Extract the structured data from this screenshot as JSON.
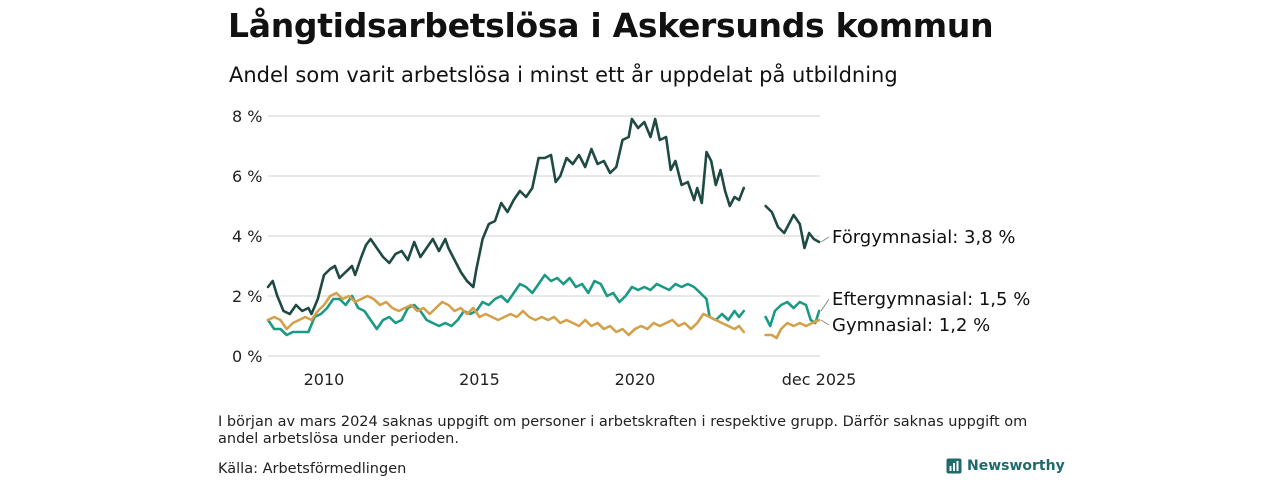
{
  "header": {
    "title": "Långtidsarbetslösa i Askersunds kommun",
    "subtitle": "Andel som varit arbetslösa i minst ett år uppdelat på utbildning"
  },
  "footer": {
    "note": "I början av mars 2024 saknas uppgift om personer i arbetskraften i respektive grupp. Därför saknas uppgift om andel arbetslösa under perioden.",
    "source": "Källa: Arbetsförmedlingen",
    "brand": "Newsworthy"
  },
  "colors": {
    "forgymnasial": "#1e4a42",
    "eftergymnasial": "#1a9a85",
    "gymnasial": "#d4a04a",
    "grid": "#d9d9d9",
    "brand": "#1d6b6b"
  },
  "chart_data": {
    "type": "line",
    "title": "Långtidsarbetslösa i Askersunds kommun",
    "xlabel": "",
    "ylabel": "",
    "xlim": [
      2008.2,
      2025.95
    ],
    "ylim": [
      0,
      8
    ],
    "y_ticks": [
      0,
      2,
      4,
      6,
      8
    ],
    "y_tick_labels": [
      "0 %",
      "2 %",
      "4 %",
      "6 %",
      "8 %"
    ],
    "x_ticks": [
      2010,
      2015,
      2020,
      2025.92
    ],
    "x_tick_labels": [
      "2010",
      "2015",
      "2020",
      "dec 2025"
    ],
    "gap": [
      2023.5,
      2024.2
    ],
    "series": [
      {
        "name": "Förgymnasial",
        "end_label": "Förgymnasial: 3,8 %",
        "color_key": "forgymnasial",
        "points": [
          [
            2008.2,
            2.3
          ],
          [
            2008.35,
            2.5
          ],
          [
            2008.5,
            2.0
          ],
          [
            2008.7,
            1.5
          ],
          [
            2008.9,
            1.4
          ],
          [
            2009.1,
            1.7
          ],
          [
            2009.3,
            1.5
          ],
          [
            2009.5,
            1.6
          ],
          [
            2009.6,
            1.4
          ],
          [
            2009.8,
            1.9
          ],
          [
            2010.0,
            2.7
          ],
          [
            2010.2,
            2.9
          ],
          [
            2010.35,
            3.0
          ],
          [
            2010.5,
            2.6
          ],
          [
            2010.7,
            2.8
          ],
          [
            2010.9,
            3.0
          ],
          [
            2011.0,
            2.7
          ],
          [
            2011.2,
            3.3
          ],
          [
            2011.35,
            3.7
          ],
          [
            2011.5,
            3.9
          ],
          [
            2011.7,
            3.6
          ],
          [
            2011.9,
            3.3
          ],
          [
            2012.1,
            3.1
          ],
          [
            2012.3,
            3.4
          ],
          [
            2012.5,
            3.5
          ],
          [
            2012.7,
            3.2
          ],
          [
            2012.9,
            3.8
          ],
          [
            2013.1,
            3.3
          ],
          [
            2013.3,
            3.6
          ],
          [
            2013.5,
            3.9
          ],
          [
            2013.7,
            3.5
          ],
          [
            2013.9,
            3.9
          ],
          [
            2014.0,
            3.6
          ],
          [
            2014.2,
            3.2
          ],
          [
            2014.4,
            2.8
          ],
          [
            2014.6,
            2.5
          ],
          [
            2014.8,
            2.3
          ],
          [
            2014.9,
            2.9
          ],
          [
            2015.1,
            3.9
          ],
          [
            2015.3,
            4.4
          ],
          [
            2015.5,
            4.5
          ],
          [
            2015.7,
            5.1
          ],
          [
            2015.9,
            4.8
          ],
          [
            2016.1,
            5.2
          ],
          [
            2016.3,
            5.5
          ],
          [
            2016.5,
            5.3
          ],
          [
            2016.7,
            5.6
          ],
          [
            2016.9,
            6.6
          ],
          [
            2017.1,
            6.6
          ],
          [
            2017.3,
            6.7
          ],
          [
            2017.45,
            5.8
          ],
          [
            2017.6,
            6.0
          ],
          [
            2017.8,
            6.6
          ],
          [
            2018.0,
            6.4
          ],
          [
            2018.2,
            6.7
          ],
          [
            2018.4,
            6.3
          ],
          [
            2018.6,
            6.9
          ],
          [
            2018.8,
            6.4
          ],
          [
            2019.0,
            6.5
          ],
          [
            2019.2,
            6.1
          ],
          [
            2019.4,
            6.3
          ],
          [
            2019.6,
            7.2
          ],
          [
            2019.8,
            7.3
          ],
          [
            2019.9,
            7.9
          ],
          [
            2020.1,
            7.6
          ],
          [
            2020.3,
            7.8
          ],
          [
            2020.5,
            7.3
          ],
          [
            2020.65,
            7.9
          ],
          [
            2020.8,
            7.2
          ],
          [
            2021.0,
            7.3
          ],
          [
            2021.15,
            6.2
          ],
          [
            2021.3,
            6.5
          ],
          [
            2021.5,
            5.7
          ],
          [
            2021.7,
            5.8
          ],
          [
            2021.9,
            5.2
          ],
          [
            2022.0,
            5.6
          ],
          [
            2022.15,
            5.1
          ],
          [
            2022.3,
            6.8
          ],
          [
            2022.45,
            6.5
          ],
          [
            2022.6,
            5.7
          ],
          [
            2022.75,
            6.2
          ],
          [
            2022.9,
            5.5
          ],
          [
            2023.05,
            5.0
          ],
          [
            2023.2,
            5.3
          ],
          [
            2023.35,
            5.2
          ],
          [
            2023.5,
            5.6
          ],
          null,
          [
            2024.2,
            5.0
          ],
          [
            2024.4,
            4.8
          ],
          [
            2024.6,
            4.3
          ],
          [
            2024.8,
            4.1
          ],
          [
            2024.95,
            4.4
          ],
          [
            2025.1,
            4.7
          ],
          [
            2025.3,
            4.4
          ],
          [
            2025.45,
            3.6
          ],
          [
            2025.6,
            4.1
          ],
          [
            2025.75,
            3.9
          ],
          [
            2025.92,
            3.8
          ]
        ]
      },
      {
        "name": "Eftergymnasial",
        "end_label": "Eftergymnasial: 1,5 %",
        "color_key": "eftergymnasial",
        "points": [
          [
            2008.2,
            1.2
          ],
          [
            2008.4,
            0.9
          ],
          [
            2008.6,
            0.9
          ],
          [
            2008.8,
            0.7
          ],
          [
            2009.0,
            0.8
          ],
          [
            2009.3,
            0.8
          ],
          [
            2009.5,
            0.8
          ],
          [
            2009.7,
            1.3
          ],
          [
            2009.9,
            1.4
          ],
          [
            2010.1,
            1.6
          ],
          [
            2010.3,
            1.9
          ],
          [
            2010.5,
            1.9
          ],
          [
            2010.7,
            1.7
          ],
          [
            2010.9,
            2.0
          ],
          [
            2011.1,
            1.6
          ],
          [
            2011.3,
            1.5
          ],
          [
            2011.5,
            1.2
          ],
          [
            2011.7,
            0.9
          ],
          [
            2011.9,
            1.2
          ],
          [
            2012.1,
            1.3
          ],
          [
            2012.3,
            1.1
          ],
          [
            2012.5,
            1.2
          ],
          [
            2012.7,
            1.6
          ],
          [
            2012.9,
            1.7
          ],
          [
            2013.1,
            1.5
          ],
          [
            2013.3,
            1.2
          ],
          [
            2013.5,
            1.1
          ],
          [
            2013.7,
            1.0
          ],
          [
            2013.9,
            1.1
          ],
          [
            2014.1,
            1.0
          ],
          [
            2014.3,
            1.2
          ],
          [
            2014.5,
            1.5
          ],
          [
            2014.7,
            1.4
          ],
          [
            2014.9,
            1.5
          ],
          [
            2015.1,
            1.8
          ],
          [
            2015.3,
            1.7
          ],
          [
            2015.5,
            1.9
          ],
          [
            2015.7,
            2.0
          ],
          [
            2015.9,
            1.8
          ],
          [
            2016.1,
            2.1
          ],
          [
            2016.3,
            2.4
          ],
          [
            2016.5,
            2.3
          ],
          [
            2016.7,
            2.1
          ],
          [
            2016.9,
            2.4
          ],
          [
            2017.1,
            2.7
          ],
          [
            2017.3,
            2.5
          ],
          [
            2017.5,
            2.6
          ],
          [
            2017.7,
            2.4
          ],
          [
            2017.9,
            2.6
          ],
          [
            2018.1,
            2.3
          ],
          [
            2018.3,
            2.4
          ],
          [
            2018.5,
            2.1
          ],
          [
            2018.7,
            2.5
          ],
          [
            2018.9,
            2.4
          ],
          [
            2019.1,
            2.0
          ],
          [
            2019.3,
            2.1
          ],
          [
            2019.5,
            1.8
          ],
          [
            2019.7,
            2.0
          ],
          [
            2019.9,
            2.3
          ],
          [
            2020.1,
            2.2
          ],
          [
            2020.3,
            2.3
          ],
          [
            2020.5,
            2.2
          ],
          [
            2020.7,
            2.4
          ],
          [
            2020.9,
            2.3
          ],
          [
            2021.1,
            2.2
          ],
          [
            2021.3,
            2.4
          ],
          [
            2021.5,
            2.3
          ],
          [
            2021.7,
            2.4
          ],
          [
            2021.9,
            2.3
          ],
          [
            2022.1,
            2.1
          ],
          [
            2022.3,
            1.9
          ],
          [
            2022.4,
            1.3
          ],
          [
            2022.6,
            1.2
          ],
          [
            2022.8,
            1.4
          ],
          [
            2023.0,
            1.2
          ],
          [
            2023.2,
            1.5
          ],
          [
            2023.35,
            1.3
          ],
          [
            2023.5,
            1.5
          ],
          null,
          [
            2024.2,
            1.3
          ],
          [
            2024.35,
            1.0
          ],
          [
            2024.5,
            1.5
          ],
          [
            2024.7,
            1.7
          ],
          [
            2024.9,
            1.8
          ],
          [
            2025.1,
            1.6
          ],
          [
            2025.3,
            1.8
          ],
          [
            2025.5,
            1.7
          ],
          [
            2025.65,
            1.2
          ],
          [
            2025.8,
            1.1
          ],
          [
            2025.92,
            1.5
          ]
        ]
      },
      {
        "name": "Gymnasial",
        "end_label": "Gymnasial: 1,2 %",
        "color_key": "gymnasial",
        "points": [
          [
            2008.2,
            1.2
          ],
          [
            2008.4,
            1.3
          ],
          [
            2008.6,
            1.2
          ],
          [
            2008.8,
            0.9
          ],
          [
            2009.0,
            1.1
          ],
          [
            2009.2,
            1.2
          ],
          [
            2009.4,
            1.3
          ],
          [
            2009.6,
            1.2
          ],
          [
            2009.8,
            1.5
          ],
          [
            2010.0,
            1.7
          ],
          [
            2010.2,
            2.0
          ],
          [
            2010.4,
            2.1
          ],
          [
            2010.6,
            1.9
          ],
          [
            2010.8,
            2.0
          ],
          [
            2011.0,
            1.8
          ],
          [
            2011.2,
            1.9
          ],
          [
            2011.4,
            2.0
          ],
          [
            2011.6,
            1.9
          ],
          [
            2011.8,
            1.7
          ],
          [
            2012.0,
            1.8
          ],
          [
            2012.2,
            1.6
          ],
          [
            2012.4,
            1.5
          ],
          [
            2012.6,
            1.6
          ],
          [
            2012.8,
            1.7
          ],
          [
            2013.0,
            1.5
          ],
          [
            2013.2,
            1.6
          ],
          [
            2013.4,
            1.4
          ],
          [
            2013.6,
            1.6
          ],
          [
            2013.8,
            1.8
          ],
          [
            2014.0,
            1.7
          ],
          [
            2014.2,
            1.5
          ],
          [
            2014.4,
            1.6
          ],
          [
            2014.6,
            1.4
          ],
          [
            2014.8,
            1.6
          ],
          [
            2015.0,
            1.3
          ],
          [
            2015.2,
            1.4
          ],
          [
            2015.4,
            1.3
          ],
          [
            2015.6,
            1.2
          ],
          [
            2015.8,
            1.3
          ],
          [
            2016.0,
            1.4
          ],
          [
            2016.2,
            1.3
          ],
          [
            2016.4,
            1.5
          ],
          [
            2016.6,
            1.3
          ],
          [
            2016.8,
            1.2
          ],
          [
            2017.0,
            1.3
          ],
          [
            2017.2,
            1.2
          ],
          [
            2017.4,
            1.3
          ],
          [
            2017.6,
            1.1
          ],
          [
            2017.8,
            1.2
          ],
          [
            2018.0,
            1.1
          ],
          [
            2018.2,
            1.0
          ],
          [
            2018.4,
            1.2
          ],
          [
            2018.6,
            1.0
          ],
          [
            2018.8,
            1.1
          ],
          [
            2019.0,
            0.9
          ],
          [
            2019.2,
            1.0
          ],
          [
            2019.4,
            0.8
          ],
          [
            2019.6,
            0.9
          ],
          [
            2019.8,
            0.7
          ],
          [
            2020.0,
            0.9
          ],
          [
            2020.2,
            1.0
          ],
          [
            2020.4,
            0.9
          ],
          [
            2020.6,
            1.1
          ],
          [
            2020.8,
            1.0
          ],
          [
            2021.0,
            1.1
          ],
          [
            2021.2,
            1.2
          ],
          [
            2021.4,
            1.0
          ],
          [
            2021.6,
            1.1
          ],
          [
            2021.8,
            0.9
          ],
          [
            2022.0,
            1.1
          ],
          [
            2022.2,
            1.4
          ],
          [
            2022.4,
            1.3
          ],
          [
            2022.6,
            1.2
          ],
          [
            2022.8,
            1.1
          ],
          [
            2023.0,
            1.0
          ],
          [
            2023.2,
            0.9
          ],
          [
            2023.35,
            1.0
          ],
          [
            2023.5,
            0.8
          ],
          null,
          [
            2024.2,
            0.7
          ],
          [
            2024.4,
            0.7
          ],
          [
            2024.55,
            0.6
          ],
          [
            2024.7,
            0.9
          ],
          [
            2024.9,
            1.1
          ],
          [
            2025.1,
            1.0
          ],
          [
            2025.3,
            1.1
          ],
          [
            2025.5,
            1.0
          ],
          [
            2025.7,
            1.1
          ],
          [
            2025.92,
            1.2
          ]
        ]
      }
    ]
  }
}
